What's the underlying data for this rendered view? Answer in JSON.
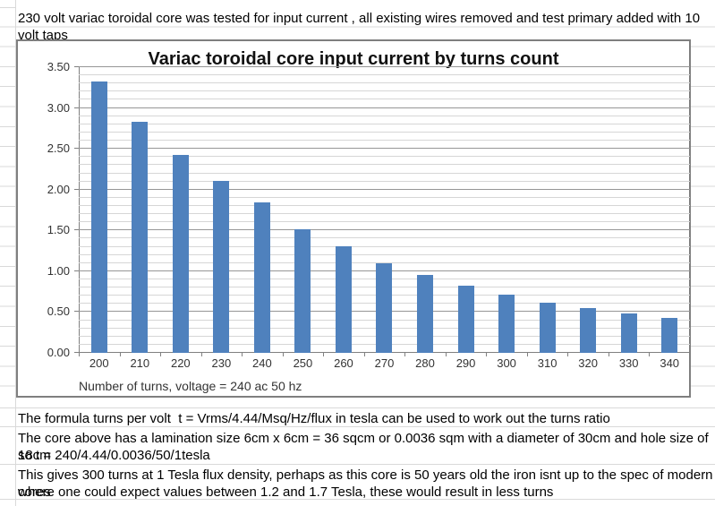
{
  "top_note": "230 volt variac toroidal core was tested for input current , all existing wires removed and test primary added with 10 volt taps",
  "chart_data": {
    "type": "bar",
    "title": "Variac toroidal core input current by turns count",
    "categories": [
      "200",
      "210",
      "220",
      "230",
      "240",
      "250",
      "260",
      "270",
      "280",
      "290",
      "300",
      "310",
      "320",
      "330",
      "340"
    ],
    "values": [
      3.32,
      2.83,
      2.43,
      2.11,
      1.84,
      1.51,
      1.31,
      1.1,
      0.96,
      0.82,
      0.71,
      0.62,
      0.55,
      0.48,
      0.43
    ],
    "xlabel": "Number of turns, voltage = 240 ac 50 hz",
    "ylabel": "",
    "ylim": [
      0,
      3.5
    ],
    "y_major_tick_labels": [
      "0.00",
      "0.50",
      "1.00",
      "1.50",
      "2.00",
      "2.50",
      "3.00",
      "3.50"
    ],
    "y_major_step": 0.5,
    "y_minor_step": 0.1,
    "grid": "horizontal major+minor, no vertical",
    "legend": "none",
    "bar_color": "#4F81BD"
  },
  "notes": {
    "line1": "The formula turns per volt  t = Vrms/4.44/Msq/Hz/flux in tesla can be used to work out the turns ratio",
    "line2": "The core above has a lamination size 6cm x 6cm = 36 sqcm or 0.0036 sqm with a diameter of 30cm and hole size of 18cm",
    "line3": "so t = 240/4.44/0.0036/50/1tesla",
    "line4": "This gives 300 turns at 1 Tesla flux density, perhaps as this core is 50 years old the iron isnt up to the spec of modern cores",
    "line5": "where one could expect values between 1.2 and 1.7 Tesla, these would result in less turns"
  },
  "colors": {
    "bar": "#4F81BD",
    "grid_minor": "#D6D6D6",
    "grid_major": "#969696",
    "axis": "#808080",
    "chart_border": "#7F7F7F",
    "sheet_gridline": "#D9D9D9",
    "text": "#000000"
  }
}
